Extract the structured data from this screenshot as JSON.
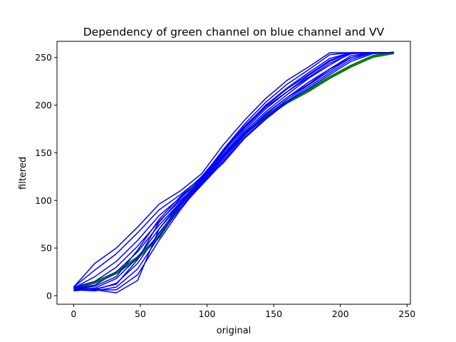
{
  "chart_data": {
    "type": "line",
    "title": "Dependency of green channel on blue channel and VV",
    "xlabel": "original",
    "ylabel": "filtered",
    "xlim": [
      -12.5,
      252.5
    ],
    "ylim": [
      -9,
      267
    ],
    "xticks": [
      0,
      50,
      100,
      150,
      200,
      250
    ],
    "yticks": [
      0,
      50,
      100,
      150,
      200,
      250
    ],
    "grid": false,
    "legend": "none",
    "colors": {
      "reference": "#008000",
      "series": "#0000ff"
    },
    "x": [
      0,
      16,
      32,
      48,
      64,
      80,
      96,
      112,
      128,
      144,
      160,
      176,
      192,
      208,
      224,
      240
    ],
    "series": [
      {
        "values": [
          8,
          14,
          24,
          40,
          62,
          96,
          124,
          146,
          170,
          188,
          203,
          215,
          229,
          241,
          251,
          255
        ],
        "role": "reference"
      },
      {
        "values": [
          9,
          34,
          50,
          72,
          96,
          110,
          128,
          158,
          184,
          207,
          226,
          240,
          255,
          255,
          255,
          255
        ]
      },
      {
        "values": [
          9,
          27,
          44,
          66,
          90,
          106,
          124,
          153,
          180,
          203,
          222,
          237,
          253,
          255,
          255,
          255
        ]
      },
      {
        "values": [
          8,
          20,
          36,
          58,
          84,
          103,
          122,
          150,
          177,
          200,
          218,
          234,
          249,
          255,
          255,
          255
        ]
      },
      {
        "values": [
          8,
          15,
          30,
          52,
          78,
          100,
          120,
          148,
          174,
          196,
          214,
          231,
          246,
          255,
          255,
          255
        ]
      },
      {
        "values": [
          8,
          11,
          25,
          46,
          74,
          98,
          119,
          146,
          172,
          193,
          211,
          228,
          242,
          255,
          255,
          255
        ]
      },
      {
        "values": [
          7,
          8,
          18,
          40,
          70,
          96,
          118,
          144,
          170,
          190,
          208,
          224,
          238,
          252,
          255,
          255
        ]
      },
      {
        "values": [
          7,
          6,
          13,
          34,
          66,
          94,
          117,
          142,
          168,
          188,
          206,
          221,
          236,
          250,
          255,
          255
        ]
      },
      {
        "values": [
          6,
          5,
          9,
          28,
          62,
          92,
          116,
          140,
          166,
          186,
          204,
          219,
          234,
          248,
          255,
          255
        ]
      },
      {
        "values": [
          6,
          6,
          6,
          22,
          58,
          90,
          118,
          139,
          165,
          185,
          203,
          217,
          232,
          246,
          254,
          255
        ]
      },
      {
        "values": [
          6,
          6,
          3,
          16,
          70,
          98,
          121,
          145,
          170,
          191,
          208,
          222,
          238,
          250,
          255,
          255
        ]
      },
      {
        "values": [
          5,
          7,
          12,
          38,
          77,
          102,
          123,
          151,
          176,
          198,
          214,
          229,
          244,
          254,
          255,
          255
        ]
      },
      {
        "values": [
          7,
          10,
          20,
          48,
          80,
          104,
          125,
          152,
          178,
          199,
          217,
          232,
          247,
          255,
          255,
          255
        ]
      }
    ]
  }
}
